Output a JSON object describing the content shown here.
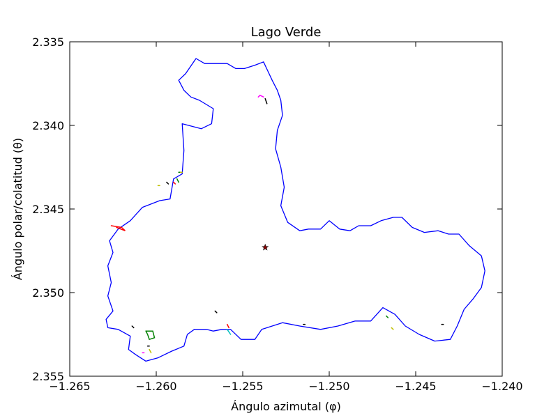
{
  "chart_data": {
    "type": "line",
    "title": "Lago Verde",
    "xlabel": "Ángulo azimutal (φ)",
    "ylabel": "Ángulo polar/colatitud (θ)",
    "xlim": [
      -1.265,
      -1.24
    ],
    "ylim": [
      2.355,
      2.335
    ],
    "y_inverted": true,
    "xticks": [
      -1.265,
      -1.26,
      -1.255,
      -1.25,
      -1.245,
      -1.24
    ],
    "xtick_labels": [
      "−1.265",
      "−1.260",
      "−1.255",
      "−1.250",
      "−1.245",
      "−1.240"
    ],
    "yticks": [
      2.335,
      2.34,
      2.345,
      2.35,
      2.355
    ],
    "ytick_labels": [
      "2.335",
      "2.340",
      "2.345",
      "2.350",
      "2.355"
    ],
    "grid": false,
    "outline": {
      "name": "",
      "color": "#0000ff",
      "points": [
        [
          -1.2622,
          2.3462
        ],
        [
          -1.2615,
          2.3457
        ],
        [
          -1.2608,
          2.3449
        ],
        [
          -1.2598,
          2.3445
        ],
        [
          -1.2592,
          2.3444
        ],
        [
          -1.259,
          2.3432
        ],
        [
          -1.2585,
          2.3429
        ],
        [
          -1.2584,
          2.3415
        ],
        [
          -1.2585,
          2.3399
        ],
        [
          -1.2574,
          2.3402
        ],
        [
          -1.2568,
          2.3399
        ],
        [
          -1.2567,
          2.339
        ],
        [
          -1.2575,
          2.3385
        ],
        [
          -1.258,
          2.3383
        ],
        [
          -1.2584,
          2.3379
        ],
        [
          -1.2587,
          2.3373
        ],
        [
          -1.2583,
          2.3369
        ],
        [
          -1.2577,
          2.336
        ],
        [
          -1.2572,
          2.3363
        ],
        [
          -1.2564,
          2.3363
        ],
        [
          -1.2559,
          2.3363
        ],
        [
          -1.2554,
          2.3366
        ],
        [
          -1.2549,
          2.3366
        ],
        [
          -1.2543,
          2.3364
        ],
        [
          -1.2538,
          2.3362
        ],
        [
          -1.2533,
          2.3373
        ],
        [
          -1.253,
          2.3379
        ],
        [
          -1.2528,
          2.3385
        ],
        [
          -1.2527,
          2.3394
        ],
        [
          -1.253,
          2.3403
        ],
        [
          -1.2531,
          2.3414
        ],
        [
          -1.2528,
          2.3425
        ],
        [
          -1.2526,
          2.3437
        ],
        [
          -1.2528,
          2.3448
        ],
        [
          -1.2524,
          2.3458
        ],
        [
          -1.2517,
          2.3463
        ],
        [
          -1.2512,
          2.3462
        ],
        [
          -1.2505,
          2.3462
        ],
        [
          -1.25,
          2.3457
        ],
        [
          -1.2494,
          2.3462
        ],
        [
          -1.2488,
          2.3463
        ],
        [
          -1.2483,
          2.346
        ],
        [
          -1.2476,
          2.346
        ],
        [
          -1.247,
          2.3457
        ],
        [
          -1.2463,
          2.3455
        ],
        [
          -1.2458,
          2.3455
        ],
        [
          -1.2452,
          2.3461
        ],
        [
          -1.2445,
          2.3464
        ],
        [
          -1.2437,
          2.3463
        ],
        [
          -1.2431,
          2.3465
        ],
        [
          -1.2425,
          2.3465
        ],
        [
          -1.2419,
          2.3472
        ],
        [
          -1.2412,
          2.3478
        ],
        [
          -1.241,
          2.3487
        ],
        [
          -1.2412,
          2.3497
        ],
        [
          -1.2417,
          2.3504
        ],
        [
          -1.2422,
          2.351
        ],
        [
          -1.2426,
          2.352
        ],
        [
          -1.243,
          2.3528
        ],
        [
          -1.2439,
          2.3529
        ],
        [
          -1.2448,
          2.3525
        ],
        [
          -1.2456,
          2.352
        ],
        [
          -1.2462,
          2.3513
        ],
        [
          -1.2469,
          2.3509
        ],
        [
          -1.2476,
          2.3517
        ],
        [
          -1.2485,
          2.3517
        ],
        [
          -1.2495,
          2.352
        ],
        [
          -1.2505,
          2.3522
        ],
        [
          -1.2517,
          2.352
        ],
        [
          -1.2527,
          2.3518
        ],
        [
          -1.2533,
          2.352
        ],
        [
          -1.2539,
          2.3522
        ],
        [
          -1.2543,
          2.3528
        ],
        [
          -1.2551,
          2.3528
        ],
        [
          -1.2557,
          2.3522
        ],
        [
          -1.2562,
          2.3522
        ],
        [
          -1.2567,
          2.3523
        ],
        [
          -1.2571,
          2.3522
        ],
        [
          -1.2578,
          2.3522
        ],
        [
          -1.2582,
          2.3525
        ],
        [
          -1.2584,
          2.3532
        ],
        [
          -1.2591,
          2.3535
        ],
        [
          -1.2599,
          2.3539
        ],
        [
          -1.2606,
          2.3541
        ],
        [
          -1.2612,
          2.3537
        ],
        [
          -1.2616,
          2.3534
        ],
        [
          -1.2615,
          2.3526
        ],
        [
          -1.2622,
          2.3522
        ],
        [
          -1.2628,
          2.3521
        ],
        [
          -1.2629,
          2.3516
        ],
        [
          -1.2625,
          2.3511
        ],
        [
          -1.2628,
          2.3502
        ],
        [
          -1.2626,
          2.3494
        ],
        [
          -1.2628,
          2.3484
        ],
        [
          -1.2625,
          2.3476
        ],
        [
          -1.2627,
          2.3469
        ],
        [
          -1.2622,
          2.3462
        ]
      ]
    },
    "features": [
      {
        "color": "#ff0000",
        "type": "polyline",
        "points": [
          [
            -1.2626,
            2.346
          ],
          [
            -1.262,
            2.3461
          ],
          [
            -1.2618,
            2.3463
          ],
          [
            -1.2623,
            2.3461
          ]
        ]
      },
      {
        "color": "#ff00ff",
        "type": "polyline",
        "points": [
          [
            -1.2541,
            2.3383
          ],
          [
            -1.254,
            2.3382
          ],
          [
            -1.2538,
            2.3383
          ]
        ]
      },
      {
        "color": "#000000",
        "type": "polyline",
        "points": [
          [
            -1.2537,
            2.3384
          ],
          [
            -1.2536,
            2.3387
          ]
        ]
      },
      {
        "color": "#008000",
        "type": "polyline",
        "points": [
          [
            -1.2606,
            2.3523
          ],
          [
            -1.2602,
            2.3523
          ],
          [
            -1.2601,
            2.3527
          ],
          [
            -1.2604,
            2.3528
          ],
          [
            -1.2605,
            2.3525
          ],
          [
            -1.2606,
            2.3523
          ]
        ]
      },
      {
        "color": "#00bfbf",
        "type": "polyline",
        "points": [
          [
            -1.2559,
            2.3522
          ],
          [
            -1.2557,
            2.3525
          ]
        ]
      },
      {
        "color": "#ff0000",
        "type": "polyline",
        "points": [
          [
            -1.2559,
            2.3519
          ],
          [
            -1.2558,
            2.3521
          ]
        ]
      },
      {
        "color": "#bfbf00",
        "type": "polyline",
        "points": [
          [
            -1.2604,
            2.3534
          ],
          [
            -1.2603,
            2.3536
          ]
        ]
      },
      {
        "color": "#008000",
        "type": "polyline",
        "points": [
          [
            -1.2587,
            2.3428
          ],
          [
            -1.2586,
            2.3428
          ]
        ]
      },
      {
        "color": "#bfbf00",
        "type": "polyline",
        "points": [
          [
            -1.2586,
            2.3428
          ],
          [
            -1.2585,
            2.3428
          ]
        ]
      },
      {
        "color": "#008000",
        "type": "polyline",
        "points": [
          [
            -1.2588,
            2.3432
          ],
          [
            -1.2587,
            2.3434
          ]
        ]
      },
      {
        "color": "#ff0000",
        "type": "polyline",
        "points": [
          [
            -1.259,
            2.3434
          ],
          [
            -1.2589,
            2.3435
          ]
        ]
      },
      {
        "color": "#000000",
        "type": "polyline",
        "points": [
          [
            -1.2594,
            2.3434
          ],
          [
            -1.2593,
            2.3435
          ]
        ]
      },
      {
        "color": "#000000",
        "type": "polyline",
        "points": [
          [
            -1.2566,
            2.3511
          ],
          [
            -1.2565,
            2.3512
          ]
        ]
      },
      {
        "color": "#000000",
        "type": "polyline",
        "points": [
          [
            -1.2614,
            2.352
          ],
          [
            -1.2613,
            2.3521
          ]
        ]
      },
      {
        "color": "#008000",
        "type": "polyline",
        "points": [
          [
            -1.2467,
            2.3514
          ],
          [
            -1.2466,
            2.3515
          ]
        ]
      },
      {
        "color": "#bfbf00",
        "type": "polyline",
        "points": [
          [
            -1.2464,
            2.3521
          ],
          [
            -1.2463,
            2.3522
          ]
        ]
      },
      {
        "color": "#000000",
        "type": "polyline",
        "points": [
          [
            -1.2435,
            2.3519
          ],
          [
            -1.2434,
            2.3519
          ]
        ]
      },
      {
        "color": "#000000",
        "type": "polyline",
        "points": [
          [
            -1.2515,
            2.3519
          ],
          [
            -1.2514,
            2.3519
          ]
        ]
      },
      {
        "color": "#000000",
        "type": "polyline",
        "points": [
          [
            -1.2605,
            2.3532
          ],
          [
            -1.2604,
            2.3532
          ]
        ]
      },
      {
        "color": "#ff00ff",
        "type": "polyline",
        "points": [
          [
            -1.2608,
            2.3536
          ],
          [
            -1.2607,
            2.3536
          ]
        ]
      },
      {
        "color": "#bfbf00",
        "type": "polyline",
        "points": [
          [
            -1.2599,
            2.3436
          ],
          [
            -1.2598,
            2.3436
          ]
        ]
      }
    ],
    "marker": {
      "x": -1.2537,
      "y": 2.3473,
      "symbol": "star",
      "color": "#8b0000"
    }
  }
}
